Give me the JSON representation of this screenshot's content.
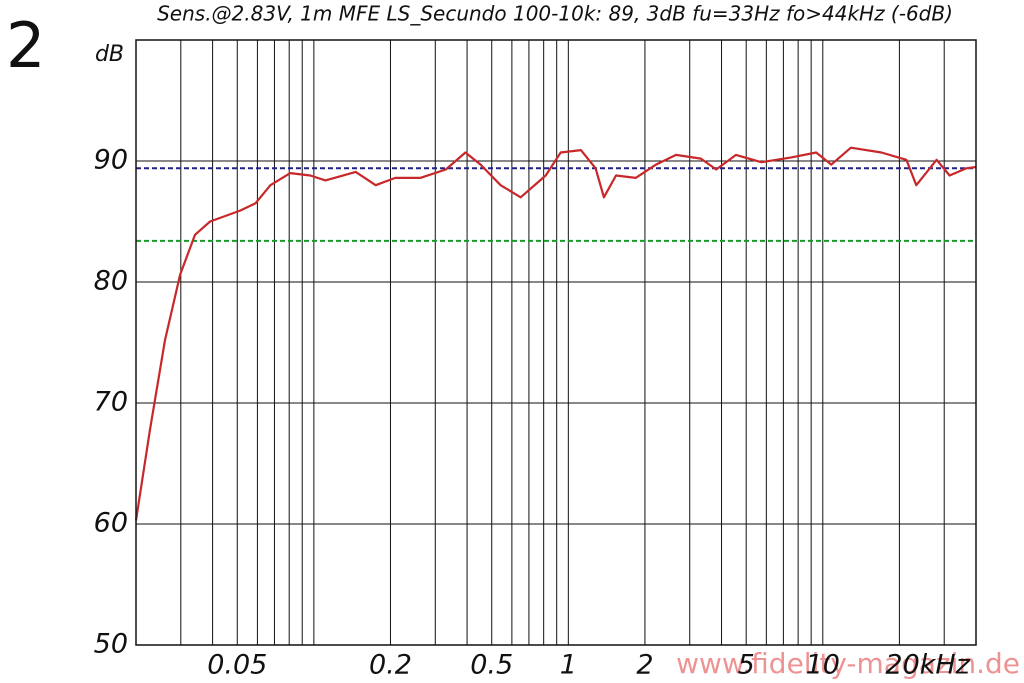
{
  "chart_data": {
    "type": "line",
    "panel_label": "2",
    "title": "Sens.@2.83V, 1m MFE LS_Secundo 100-10k: 89, 3dB fu=33Hz fo>44kHz (-6dB)",
    "ylabel": "dB",
    "watermark": "www.fidelity-magazin.de",
    "xscale": "log",
    "xlim": [
      0.02,
      40
    ],
    "ylim": [
      50,
      100
    ],
    "xticks": [
      0.05,
      0.2,
      0.5,
      1,
      2,
      5,
      10,
      {
        "value": 20,
        "label": "20kHz"
      }
    ],
    "xminor": [
      0.02,
      0.03,
      0.04,
      0.06,
      0.07,
      0.08,
      0.09,
      0.1,
      0.3,
      0.4,
      0.6,
      0.7,
      0.8,
      0.9,
      3,
      4,
      6,
      7,
      8,
      9,
      30,
      40
    ],
    "yticks": [
      50,
      60,
      70,
      80,
      90
    ],
    "grid": true,
    "reference_lines": [
      {
        "value": 89.4,
        "color": "#20208a"
      },
      {
        "value": 83.4,
        "color": "#1a9a2a"
      }
    ],
    "series": [
      {
        "color": "#c8282a",
        "x": [
          0.02,
          0.0227,
          0.026,
          0.0298,
          0.0341,
          0.0391,
          0.0513,
          0.0589,
          0.0675,
          0.0808,
          0.0968,
          0.111,
          0.146,
          0.175,
          0.209,
          0.262,
          0.33,
          0.394,
          0.452,
          0.542,
          0.65,
          0.815,
          0.933,
          1.12,
          1.28,
          1.38,
          1.54,
          1.84,
          2.21,
          2.65,
          3.32,
          3.81,
          4.56,
          5.73,
          7.52,
          9.42,
          10.8,
          12.9,
          17.0,
          21.3,
          23.3,
          28.0,
          31.5,
          36.7,
          40
        ],
        "values": [
          60.3,
          67.8,
          75.2,
          80.6,
          83.9,
          85.0,
          85.9,
          86.5,
          88.0,
          89.0,
          88.8,
          88.4,
          89.1,
          88.0,
          88.6,
          88.6,
          89.3,
          90.7,
          89.7,
          88.0,
          87.0,
          88.8,
          90.7,
          90.9,
          89.4,
          87.0,
          88.8,
          88.6,
          89.7,
          90.5,
          90.2,
          89.3,
          90.5,
          89.9,
          90.3,
          90.7,
          89.7,
          91.1,
          90.7,
          90.1,
          88.0,
          90.1,
          88.8,
          89.4,
          89.5
        ]
      }
    ]
  }
}
